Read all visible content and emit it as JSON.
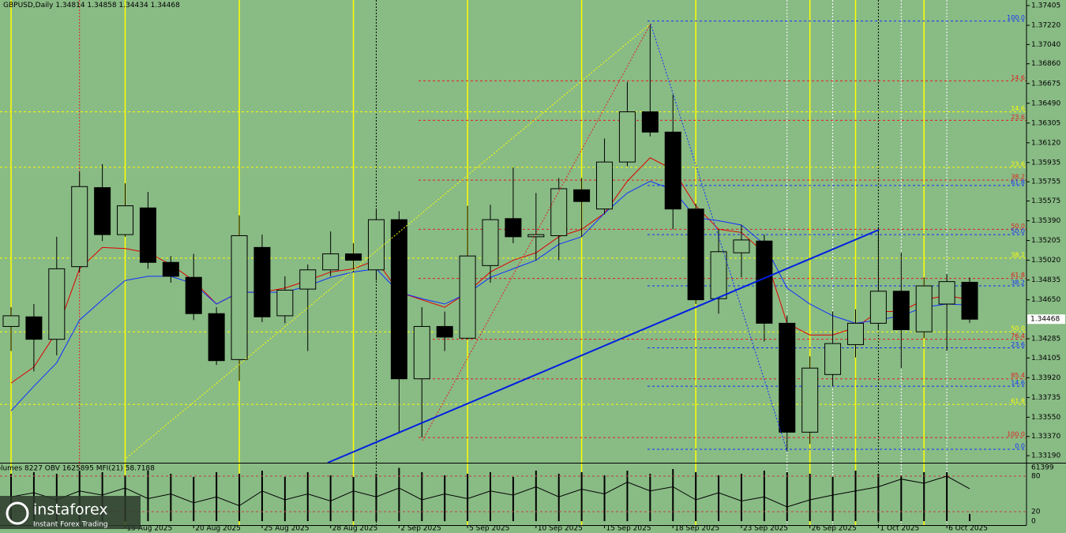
{
  "chart_data": {
    "type": "candlestick",
    "symbol": "GBPUSD,Daily",
    "up_color": "#89bb85",
    "down_color": "#000000",
    "categories": [
      null,
      null,
      null,
      null,
      null,
      "15 Aug 2025",
      null,
      null,
      "20 Aug 2025",
      null,
      null,
      "25 Aug 2025",
      null,
      null,
      "28 Aug 2025",
      null,
      null,
      "2 Sep 2025",
      null,
      null,
      "5 Sep 2025",
      null,
      null,
      "10 Sep 2025",
      null,
      null,
      "15 Sep 2025",
      null,
      null,
      "18 Sep 2025",
      null,
      null,
      "23 Sep 2025",
      null,
      null,
      "26 Sep 2025",
      null,
      null,
      "1 Oct 2025",
      null,
      null,
      "6 Oct 2025",
      null
    ],
    "open": [
      1.344,
      1.3449,
      1.3428,
      1.3496,
      1.357,
      1.3526,
      1.3551,
      1.35,
      1.3486,
      1.3452,
      1.3409,
      1.3514,
      1.345,
      1.3475,
      1.3493,
      1.3508,
      1.3493,
      1.354,
      1.3391,
      1.344,
      1.3429,
      1.3497,
      1.3541,
      1.3524,
      1.3525,
      1.3568,
      1.355,
      1.3594,
      1.3641,
      1.3622,
      1.355,
      1.3466,
      1.3509,
      1.352,
      1.3443,
      1.3341,
      1.3395,
      1.3423,
      1.3443,
      1.3473,
      1.3435,
      1.3461,
      1.34814
    ],
    "high": [
      1.3458,
      1.3461,
      1.3524,
      1.3585,
      1.3592,
      1.3574,
      1.3566,
      1.3506,
      1.3508,
      1.3458,
      1.3544,
      1.3526,
      1.3487,
      1.3498,
      1.3529,
      1.3518,
      1.355,
      1.3548,
      1.3458,
      1.3454,
      1.3553,
      1.3554,
      1.3589,
      1.3565,
      1.3579,
      1.3579,
      1.3616,
      1.3669,
      1.3723,
      1.3657,
      1.3555,
      1.3531,
      1.3535,
      1.3526,
      1.345,
      1.3412,
      1.3454,
      1.3456,
      1.3533,
      1.3509,
      1.3486,
      1.3489,
      1.34858
    ],
    "low": [
      1.3417,
      1.3398,
      1.3413,
      1.3491,
      1.352,
      1.3524,
      1.3494,
      1.3481,
      1.3446,
      1.3404,
      1.3389,
      1.3444,
      1.3443,
      1.3417,
      1.3487,
      1.3491,
      1.3483,
      1.3341,
      1.3336,
      1.3417,
      1.3428,
      1.3481,
      1.3518,
      1.3502,
      1.3502,
      1.3524,
      1.3545,
      1.359,
      1.3618,
      1.3531,
      1.3461,
      1.3452,
      1.3486,
      1.3426,
      1.3323,
      1.333,
      1.3384,
      1.3411,
      1.3437,
      1.3401,
      1.3429,
      1.3417,
      1.34434
    ],
    "close": [
      1.345,
      1.3428,
      1.3494,
      1.3571,
      1.3526,
      1.3553,
      1.35,
      1.3487,
      1.3452,
      1.3408,
      1.3525,
      1.3449,
      1.3474,
      1.3493,
      1.3508,
      1.3502,
      1.354,
      1.3391,
      1.344,
      1.343,
      1.3506,
      1.354,
      1.3524,
      1.3526,
      1.3569,
      1.3557,
      1.3594,
      1.3641,
      1.3622,
      1.355,
      1.3465,
      1.351,
      1.3521,
      1.3443,
      1.3341,
      1.3401,
      1.3424,
      1.3443,
      1.3473,
      1.3437,
      1.3478,
      1.3482,
      1.34468
    ],
    "overlays": [
      {
        "color": "#e00000",
        "values": [
          1.3387,
          1.3402,
          1.3435,
          1.3494,
          1.3514,
          1.3513,
          1.3509,
          1.3498,
          1.3483,
          1.3461,
          1.3472,
          1.3472,
          1.3476,
          1.3483,
          1.3491,
          1.3494,
          1.3502,
          1.3472,
          1.3465,
          1.3458,
          1.3472,
          1.3491,
          1.3502,
          1.3509,
          1.3524,
          1.3531,
          1.3546,
          1.3576,
          1.3598,
          1.3587,
          1.3553,
          1.3531,
          1.3528,
          1.3509,
          1.3443,
          1.3432,
          1.3432,
          1.3439,
          1.3454,
          1.3454,
          1.3465,
          1.3469,
          1.3465
        ]
      },
      {
        "color": "#1030ff",
        "values": [
          1.3361,
          1.3384,
          1.3406,
          1.3446,
          1.3465,
          1.3483,
          1.3487,
          1.3487,
          1.348,
          1.3461,
          1.3472,
          1.3472,
          1.3472,
          1.3478,
          1.3486,
          1.3491,
          1.3494,
          1.3472,
          1.3466,
          1.3461,
          1.3471,
          1.3486,
          1.3494,
          1.3502,
          1.3517,
          1.3524,
          1.3546,
          1.3565,
          1.3576,
          1.3568,
          1.3542,
          1.3539,
          1.3535,
          1.3517,
          1.3476,
          1.3461,
          1.345,
          1.3443,
          1.3446,
          1.345,
          1.3458,
          1.3461,
          1.346
        ]
      }
    ],
    "fib_levels": [
      {
        "label": "100.0",
        "price": 1.3726,
        "color": "#1030ff"
      },
      {
        "label": "14.6",
        "price": 1.367,
        "color": "#e02020"
      },
      {
        "label": "14.6",
        "price": 1.3641,
        "color": "#ffff00"
      },
      {
        "label": "23.6",
        "price": 1.3633,
        "color": "#e02020"
      },
      {
        "label": "23.6",
        "price": 1.3589,
        "color": "#ffff00"
      },
      {
        "label": "38.2",
        "price": 1.3577,
        "color": "#e02020"
      },
      {
        "label": "61.8",
        "price": 1.3572,
        "color": "#1030ff"
      },
      {
        "label": "50.0",
        "price": 1.3531,
        "color": "#e02020"
      },
      {
        "label": "50.0",
        "price": 1.3526,
        "color": "#1030ff"
      },
      {
        "label": "38.2",
        "price": 1.3504,
        "color": "#ffff00"
      },
      {
        "label": "61.8",
        "price": 1.3485,
        "color": "#e02020"
      },
      {
        "label": "38.2",
        "price": 1.3478,
        "color": "#1030ff"
      },
      {
        "label": "50.0",
        "price": 1.3435,
        "color": "#ffff00"
      },
      {
        "label": "76.4",
        "price": 1.3428,
        "color": "#e02020"
      },
      {
        "label": "23.6",
        "price": 1.342,
        "color": "#1030ff"
      },
      {
        "label": "85.4",
        "price": 1.3391,
        "color": "#e02020"
      },
      {
        "label": "14.6",
        "price": 1.3384,
        "color": "#1030ff"
      },
      {
        "label": "61.8",
        "price": 1.3367,
        "color": "#ffff00"
      },
      {
        "label": "100.0",
        "price": 1.3336,
        "color": "#e02020"
      },
      {
        "label": "0.0",
        "price": 1.3325,
        "color": "#1030ff"
      }
    ],
    "ylim": [
      1.33124,
      1.37457
    ],
    "yticks": [
      1.37405,
      {
        "value": 1.3722,
        "label": "1.37220"
      },
      {
        "value": 1.3704,
        "label": "1.37040"
      },
      {
        "value": 1.3686,
        "label": "1.36860"
      },
      1.36675,
      {
        "value": 1.3649,
        "label": "1.36490"
      },
      1.36305,
      {
        "value": 1.3612,
        "label": "1.36120"
      },
      1.35935,
      1.35755,
      1.35575,
      {
        "value": 1.3539,
        "label": "1.35390"
      },
      1.35205,
      {
        "value": 1.3502,
        "label": "1.35020"
      },
      1.34835,
      {
        "value": 1.3465,
        "label": "1.34650"
      },
      1.34285,
      1.34105,
      {
        "value": 1.3392,
        "label": "1.33920"
      },
      1.33735,
      {
        "value": 1.3355,
        "label": "1.33550"
      },
      {
        "value": 1.3337,
        "label": "1.33370"
      },
      {
        "value": 1.3319,
        "label": "1.33190"
      }
    ],
    "indicator_title": "Volumes 8227  OBV 1625895  MFI(21) 58.7188",
    "volumes": [
      54200,
      56000,
      54200,
      57800,
      56000,
      52400,
      57800,
      54200,
      50600,
      56000,
      54200,
      57800,
      50600,
      56000,
      52400,
      50600,
      54200,
      61000,
      56000,
      52400,
      54200,
      56000,
      50600,
      57800,
      54200,
      56000,
      52400,
      57800,
      54200,
      59600,
      56000,
      52400,
      54200,
      57800,
      56000,
      54200,
      50600,
      57800,
      54200,
      52400,
      56000,
      56000,
      8227
    ],
    "volume_ylim": [
      0,
      61399
    ],
    "volume_ticks": [
      61399
    ],
    "mfi": [
      45,
      52,
      40,
      55,
      48,
      60,
      42,
      50,
      35,
      45,
      30,
      55,
      40,
      50,
      38,
      55,
      45,
      60,
      40,
      50,
      42,
      55,
      48,
      62,
      45,
      58,
      50,
      70,
      55,
      62,
      40,
      52,
      38,
      45,
      28,
      40,
      48,
      55,
      62,
      75,
      68,
      80,
      58.7188
    ],
    "mfi_ylim": [
      0,
      100
    ],
    "mfi_ticks": [
      80,
      20,
      0
    ],
    "logo": {
      "name": "instaforex",
      "tagline": "Instant Forex Trading"
    }
  }
}
